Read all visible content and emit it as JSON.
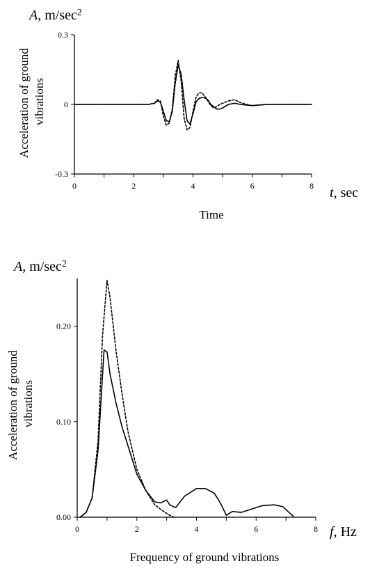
{
  "chart_data": [
    {
      "type": "line",
      "corner_label": {
        "var": "A",
        "unit": ", m/sec",
        "sup": "2"
      },
      "ylabel": [
        "Acceleration of ground",
        "vibrations"
      ],
      "xlabel": "Time",
      "x_unit_label": {
        "var": "t",
        "unit": ", sec"
      },
      "xlim": [
        0,
        8
      ],
      "ylim": [
        -0.3,
        0.3
      ],
      "x_ticks": [
        "0",
        "2",
        "4",
        "6",
        "8"
      ],
      "y_ticks": [
        "0.3",
        "0",
        "-0.3"
      ],
      "grid": false,
      "series": [
        {
          "style": "solid",
          "x": [
            0,
            2.5,
            2.7,
            2.8,
            2.9,
            3.0,
            3.1,
            3.2,
            3.3,
            3.4,
            3.5,
            3.6,
            3.7,
            3.8,
            3.9,
            4.0,
            4.1,
            4.2,
            4.3,
            4.4,
            4.5,
            4.6,
            4.7,
            4.8,
            4.9,
            5.0,
            5.2,
            5.4,
            5.6,
            5.8,
            6.0,
            6.5,
            7.0,
            8.0
          ],
          "y": [
            0,
            0,
            0.005,
            0.015,
            0.01,
            -0.03,
            -0.07,
            -0.075,
            -0.03,
            0.09,
            0.17,
            0.13,
            0.02,
            -0.07,
            -0.085,
            -0.04,
            0.01,
            0.025,
            0.03,
            0.028,
            0.02,
            0.0,
            -0.01,
            -0.02,
            -0.02,
            -0.015,
            0.0,
            0.005,
            0.0,
            -0.003,
            -0.005,
            0.0,
            0.0,
            0.0
          ]
        },
        {
          "style": "dashed",
          "x": [
            0,
            2.5,
            2.7,
            2.8,
            2.9,
            3.0,
            3.1,
            3.2,
            3.3,
            3.4,
            3.5,
            3.6,
            3.7,
            3.8,
            3.9,
            4.0,
            4.1,
            4.2,
            4.3,
            4.4,
            4.5,
            4.6,
            4.7,
            4.8,
            4.9,
            5.0,
            5.2,
            5.4,
            5.6,
            5.8,
            6.0,
            6.5,
            7.0,
            8.0
          ],
          "y": [
            0,
            0,
            0.005,
            0.02,
            0.015,
            -0.05,
            -0.09,
            -0.08,
            -0.02,
            0.12,
            0.19,
            0.1,
            -0.06,
            -0.11,
            -0.1,
            -0.03,
            0.03,
            0.05,
            0.05,
            0.035,
            0.015,
            -0.005,
            -0.015,
            -0.01,
            0.0,
            0.005,
            0.015,
            0.02,
            0.008,
            0.0,
            -0.005,
            0.0,
            0.0,
            0.0
          ]
        }
      ]
    },
    {
      "type": "line",
      "corner_label": {
        "var": "A",
        "unit": ", m/sec",
        "sup": "2"
      },
      "ylabel": [
        "Acceleration of ground",
        "vibrations"
      ],
      "xlabel": "Frequency of ground vibrations",
      "x_unit_label": {
        "var": "f",
        "unit": ", Hz"
      },
      "xlim": [
        0,
        8
      ],
      "ylim": [
        0,
        0.25
      ],
      "x_ticks": [
        "0",
        "2",
        "4",
        "6",
        "8"
      ],
      "y_ticks": [
        "0.20",
        "0.10",
        "0.00"
      ],
      "grid": false,
      "series": [
        {
          "style": "solid",
          "x": [
            0.1,
            0.3,
            0.5,
            0.7,
            0.9,
            1.0,
            1.1,
            1.3,
            1.5,
            1.7,
            2.0,
            2.3,
            2.6,
            2.8,
            3.0,
            3.1,
            3.3,
            3.6,
            4.0,
            4.3,
            4.6,
            4.8,
            5.0,
            5.2,
            5.5,
            5.8,
            6.2,
            6.6,
            6.9,
            7.1,
            7.25
          ],
          "y": [
            0.0,
            0.005,
            0.02,
            0.07,
            0.175,
            0.173,
            0.15,
            0.12,
            0.095,
            0.075,
            0.045,
            0.028,
            0.016,
            0.015,
            0.018,
            0.013,
            0.01,
            0.022,
            0.03,
            0.03,
            0.025,
            0.015,
            0.002,
            0.006,
            0.005,
            0.008,
            0.012,
            0.013,
            0.011,
            0.005,
            0.001
          ]
        },
        {
          "style": "dashed",
          "x": [
            0.1,
            0.3,
            0.5,
            0.7,
            0.85,
            1.0,
            1.1,
            1.3,
            1.5,
            1.7,
            2.0,
            2.3,
            2.6,
            2.9,
            3.1,
            3.25
          ],
          "y": [
            0.0,
            0.005,
            0.02,
            0.08,
            0.19,
            0.248,
            0.23,
            0.175,
            0.13,
            0.09,
            0.05,
            0.028,
            0.013,
            0.006,
            0.002,
            0.0
          ]
        }
      ]
    }
  ]
}
